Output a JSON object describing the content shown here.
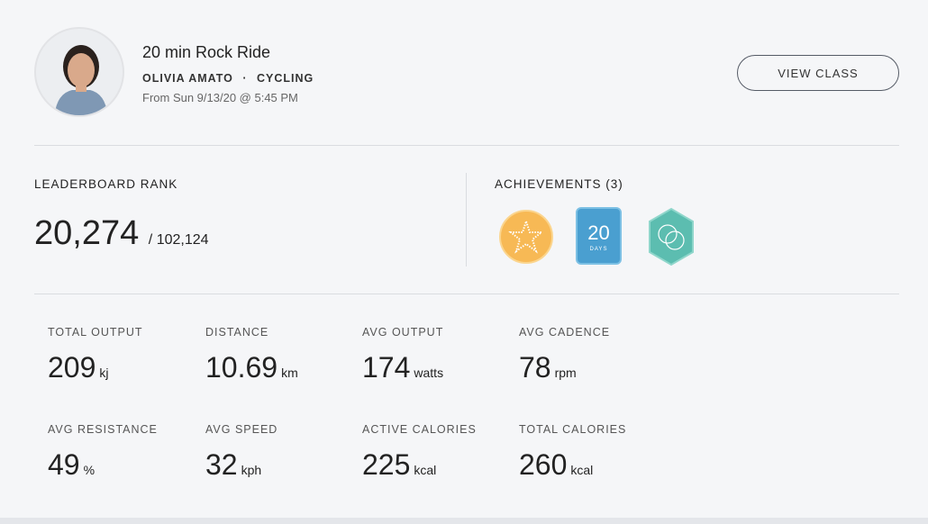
{
  "class": {
    "title": "20 min Rock Ride",
    "instructor": "OLIVIA AMATO",
    "separator": "·",
    "discipline": "CYCLING",
    "date": "From Sun 9/13/20 @ 5:45 PM",
    "view_label": "VIEW CLASS"
  },
  "leaderboard": {
    "label": "LEADERBOARD RANK",
    "rank": "20,274",
    "total": "/ 102,124"
  },
  "achievements": {
    "label": "ACHIEVEMENTS (3)",
    "badges": [
      {
        "icon": "star-badge-icon",
        "color": "#f7b955"
      },
      {
        "icon": "streak-badge-icon",
        "color": "#4a9fd0",
        "value": "20",
        "unit": "DAYS"
      },
      {
        "icon": "circles-badge-icon",
        "color": "#5cbdb0"
      }
    ]
  },
  "stats": [
    {
      "label": "TOTAL OUTPUT",
      "value": "209",
      "unit": "kj"
    },
    {
      "label": "DISTANCE",
      "value": "10.69",
      "unit": "km"
    },
    {
      "label": "AVG OUTPUT",
      "value": "174",
      "unit": "watts"
    },
    {
      "label": "AVG CADENCE",
      "value": "78",
      "unit": "rpm"
    },
    {
      "label": "AVG RESISTANCE",
      "value": "49",
      "unit": "%"
    },
    {
      "label": "AVG SPEED",
      "value": "32",
      "unit": "kph"
    },
    {
      "label": "ACTIVE CALORIES",
      "value": "225",
      "unit": "kcal"
    },
    {
      "label": "TOTAL CALORIES",
      "value": "260",
      "unit": "kcal"
    }
  ]
}
